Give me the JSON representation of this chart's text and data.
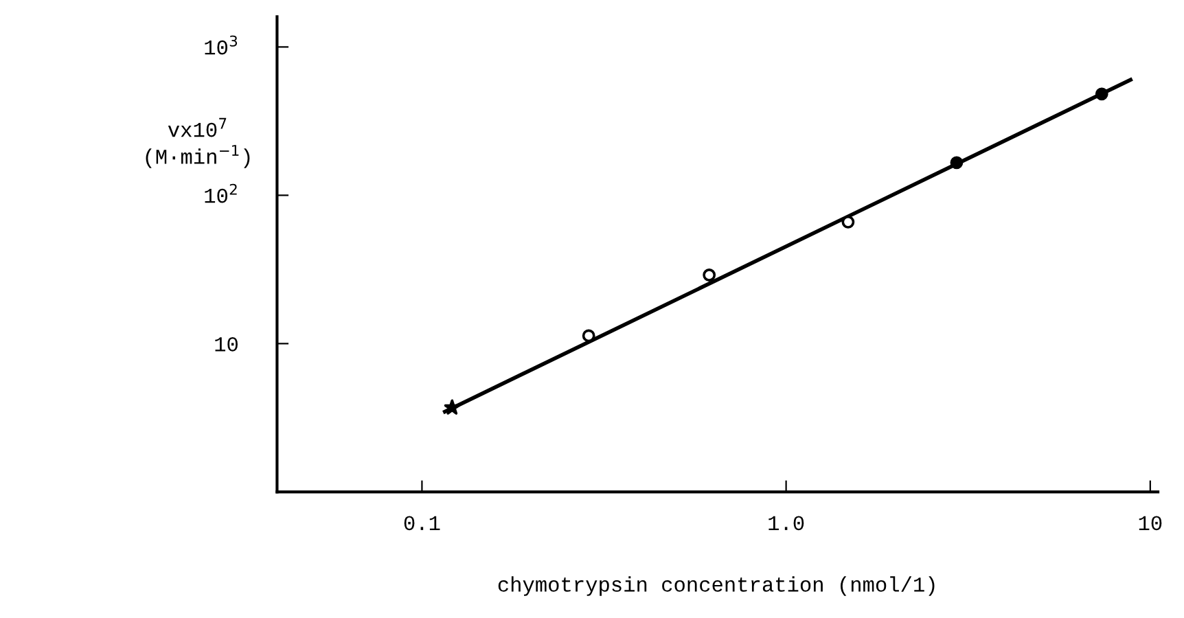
{
  "chart_data": {
    "type": "scatter",
    "xlabel": "chymotrypsin concentration (nmol/1)",
    "ylabel": "vx10$^{7}$\n(M·min$^{−1}$)",
    "log": "xy",
    "grid": false,
    "xlim": [
      0.04,
      10.5
    ],
    "xticks": [
      0.1,
      {
        "value": 1,
        "label": "1.0"
      },
      10
    ],
    "ylim": [
      1,
      1600
    ],
    "yticks": [
      {
        "value": 10,
        "label": "10"
      },
      {
        "value": 100,
        "label": "10$^{2}$"
      },
      {
        "value": 1000,
        "label": "10$^{3}$"
      }
    ],
    "series": [
      {
        "marker": "star",
        "color": "#000000",
        "x": [
          0.121
        ],
        "values": [
          3.7
        ]
      },
      {
        "marker": "circle",
        "color": "#ffffff",
        "x": [
          0.287,
          0.615,
          1.48
        ],
        "values": [
          11.3,
          29,
          66
        ]
      },
      {
        "marker": "circle",
        "color": "#000000",
        "x": [
          2.94,
          7.36
        ],
        "values": [
          166,
          482
        ]
      },
      {
        "type": "line",
        "marker": "none",
        "line_style": "solid",
        "color": "#000000",
        "x": [
          0.1156,
          8.83
        ],
        "values": [
          3.48,
          601
        ]
      }
    ]
  }
}
